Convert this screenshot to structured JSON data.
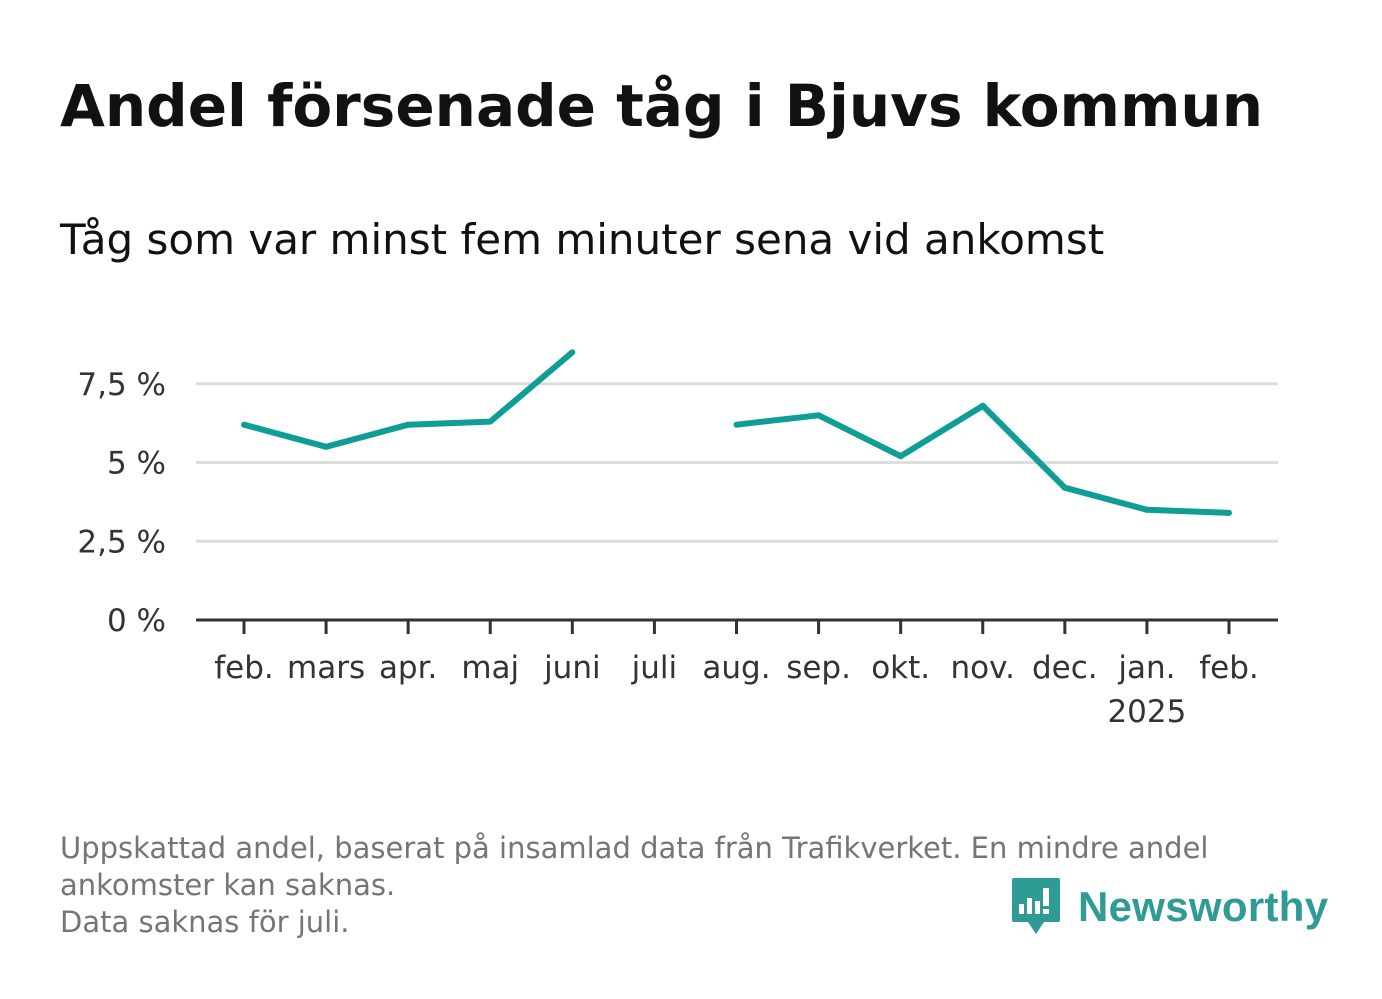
{
  "title": "Andel försenade tåg i Bjuvs kommun",
  "subtitle": "Tåg som var minst fem minuter sena vid ankomst",
  "footnote": {
    "line1": "Uppskattad andel, baserat på insamlad data från Trafikverket. En mindre andel",
    "line2": "ankomster kan saknas.",
    "line3": "Data saknas för juli."
  },
  "brand": {
    "name": "Newsworthy",
    "icon": "newsworthy-logo-icon",
    "color": "#2e9b94"
  },
  "chart_data": {
    "type": "line",
    "categories": [
      "feb.",
      "mars",
      "apr.",
      "maj",
      "juni",
      "juli",
      "aug.",
      "sep.",
      "okt.",
      "nov.",
      "dec.",
      "jan.",
      "feb."
    ],
    "year_label": {
      "text": "2025",
      "category_index": 11
    },
    "series": [
      {
        "color": "#0f9e96",
        "values": [
          6.2,
          5.5,
          6.2,
          6.3,
          8.5,
          null,
          6.2,
          6.5,
          5.2,
          6.8,
          4.2,
          3.5,
          3.4
        ]
      }
    ],
    "y_ticks": [
      {
        "value": 0,
        "label": "0 %"
      },
      {
        "value": 2.5,
        "label": "2,5 %"
      },
      {
        "value": 5,
        "label": "5 %"
      },
      {
        "value": 7.5,
        "label": "7,5 %"
      }
    ],
    "ylim": [
      0,
      10
    ],
    "grid": true,
    "colors": {
      "line": "#0f9e96",
      "grid": "#dddddd",
      "axis": "#333333",
      "text": "#333333"
    }
  }
}
